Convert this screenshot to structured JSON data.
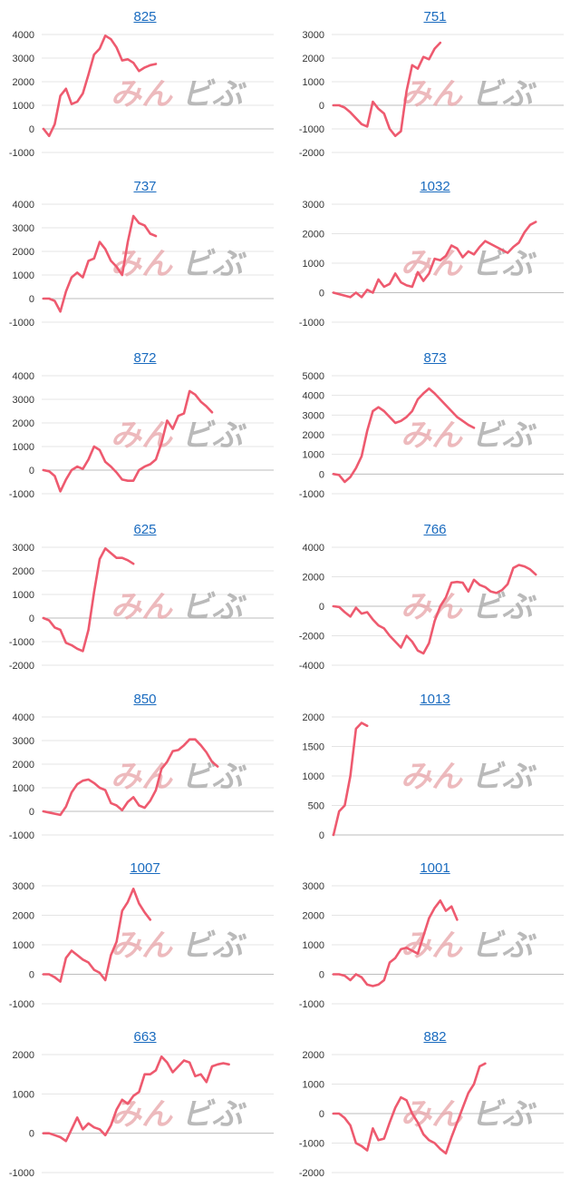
{
  "watermark": {
    "left": "みん",
    "right": "ビぶ"
  },
  "colors": {
    "line": "#ee5a6f",
    "link": "#1a6bbf",
    "grid": "#e4e4e4",
    "axis": "#bdbdbd"
  },
  "chart_data": [
    {
      "type": "line",
      "title": "825",
      "yticks": [
        -1000,
        0,
        1000,
        2000,
        3000,
        4000
      ],
      "values": [
        0,
        -300,
        200,
        1400,
        1700,
        1050,
        1150,
        1500,
        2300,
        3150,
        3400,
        3950,
        3800,
        3450,
        2900,
        2950,
        2800,
        2450,
        2600,
        2700,
        2750
      ]
    },
    {
      "type": "line",
      "title": "751",
      "yticks": [
        -2000,
        -1000,
        0,
        1000,
        2000,
        3000
      ],
      "values": [
        0,
        0,
        -100,
        -300,
        -550,
        -800,
        -900,
        150,
        -150,
        -350,
        -1000,
        -1300,
        -1100,
        600,
        1700,
        1550,
        2050,
        1950,
        2400,
        2650
      ]
    },
    {
      "type": "line",
      "title": "737",
      "yticks": [
        -1000,
        0,
        1000,
        2000,
        3000,
        4000
      ],
      "values": [
        0,
        0,
        -100,
        -550,
        300,
        900,
        1100,
        900,
        1600,
        1700,
        2400,
        2100,
        1600,
        1350,
        1000,
        2400,
        3500,
        3200,
        3100,
        2750,
        2650
      ]
    },
    {
      "type": "line",
      "title": "1032",
      "yticks": [
        -1000,
        0,
        1000,
        2000,
        3000
      ],
      "values": [
        0,
        -50,
        -100,
        -150,
        0,
        -150,
        100,
        0,
        450,
        200,
        300,
        650,
        350,
        250,
        200,
        700,
        400,
        650,
        1150,
        1100,
        1250,
        1600,
        1500,
        1200,
        1400,
        1300,
        1550,
        1750,
        1650,
        1550,
        1450,
        1350,
        1550,
        1700,
        2050,
        2300,
        2400
      ]
    },
    {
      "type": "line",
      "title": "872",
      "yticks": [
        -1000,
        0,
        1000,
        2000,
        3000,
        4000
      ],
      "values": [
        0,
        -50,
        -250,
        -900,
        -400,
        0,
        150,
        50,
        450,
        1000,
        850,
        350,
        150,
        -100,
        -400,
        -450,
        -450,
        0,
        150,
        250,
        450,
        1150,
        2100,
        1750,
        2300,
        2400,
        3350,
        3200,
        2900,
        2700,
        2450
      ]
    },
    {
      "type": "line",
      "title": "873",
      "yticks": [
        -1000,
        0,
        1000,
        2000,
        3000,
        4000,
        5000
      ],
      "values": [
        0,
        -50,
        -400,
        -150,
        300,
        900,
        2200,
        3200,
        3400,
        3200,
        2900,
        2600,
        2700,
        2900,
        3200,
        3800,
        4100,
        4350,
        4100,
        3800,
        3500,
        3200,
        2900,
        2700,
        2500,
        2350
      ]
    },
    {
      "type": "line",
      "title": "625",
      "yticks": [
        -2000,
        -1000,
        0,
        1000,
        2000,
        3000
      ],
      "values": [
        0,
        -100,
        -400,
        -500,
        -1050,
        -1150,
        -1300,
        -1400,
        -500,
        1100,
        2500,
        2950,
        2750,
        2550,
        2550,
        2450,
        2300
      ]
    },
    {
      "type": "line",
      "title": "766",
      "yticks": [
        -4000,
        -2000,
        0,
        2000,
        4000
      ],
      "values": [
        0,
        -50,
        -400,
        -700,
        -100,
        -500,
        -400,
        -900,
        -1300,
        -1500,
        -2000,
        -2400,
        -2800,
        -2000,
        -2400,
        -3000,
        -3200,
        -2500,
        -1000,
        0,
        600,
        1600,
        1650,
        1600,
        1000,
        1800,
        1450,
        1300,
        1000,
        900,
        1100,
        1500,
        2600,
        2800,
        2700,
        2500,
        2150
      ]
    },
    {
      "type": "line",
      "title": "850",
      "yticks": [
        -1000,
        0,
        1000,
        2000,
        3000,
        4000
      ],
      "values": [
        0,
        -50,
        -100,
        -150,
        200,
        800,
        1150,
        1300,
        1350,
        1200,
        1000,
        900,
        350,
        250,
        50,
        400,
        600,
        250,
        150,
        450,
        900,
        1800,
        2100,
        2550,
        2600,
        2800,
        3050,
        3050,
        2800,
        2500,
        2100,
        1900
      ]
    },
    {
      "type": "line",
      "title": "1013",
      "yticks": [
        0,
        500,
        1000,
        1500,
        2000
      ],
      "values": [
        0,
        400,
        500,
        1000,
        1800,
        1900,
        1850
      ]
    },
    {
      "type": "line",
      "title": "1007",
      "yticks": [
        -1000,
        0,
        1000,
        2000,
        3000
      ],
      "values": [
        0,
        0,
        -100,
        -250,
        550,
        800,
        650,
        500,
        400,
        150,
        50,
        -200,
        650,
        1100,
        2150,
        2450,
        2900,
        2400,
        2100,
        1850
      ]
    },
    {
      "type": "line",
      "title": "1001",
      "yticks": [
        -1000,
        0,
        1000,
        2000,
        3000
      ],
      "values": [
        0,
        0,
        -50,
        -200,
        0,
        -100,
        -350,
        -400,
        -350,
        -200,
        400,
        550,
        850,
        900,
        800,
        700,
        1300,
        1900,
        2250,
        2500,
        2150,
        2300,
        1850
      ]
    },
    {
      "type": "line",
      "title": "663",
      "yticks": [
        -1000,
        0,
        1000,
        2000
      ],
      "values": [
        0,
        0,
        -50,
        -100,
        -200,
        100,
        400,
        100,
        250,
        150,
        100,
        -50,
        200,
        600,
        850,
        750,
        950,
        1050,
        1500,
        1500,
        1600,
        1950,
        1800,
        1550,
        1700,
        1850,
        1800,
        1450,
        1500,
        1300,
        1700,
        1750,
        1780,
        1750
      ]
    },
    {
      "type": "line",
      "title": "882",
      "yticks": [
        -2000,
        -1000,
        0,
        1000,
        2000
      ],
      "values": [
        0,
        0,
        -150,
        -400,
        -1000,
        -1100,
        -1250,
        -500,
        -900,
        -850,
        -300,
        200,
        550,
        450,
        0,
        -300,
        -700,
        -900,
        -1000,
        -1200,
        -1350,
        -800,
        -300,
        200,
        700,
        1000,
        1600,
        1700
      ]
    }
  ]
}
